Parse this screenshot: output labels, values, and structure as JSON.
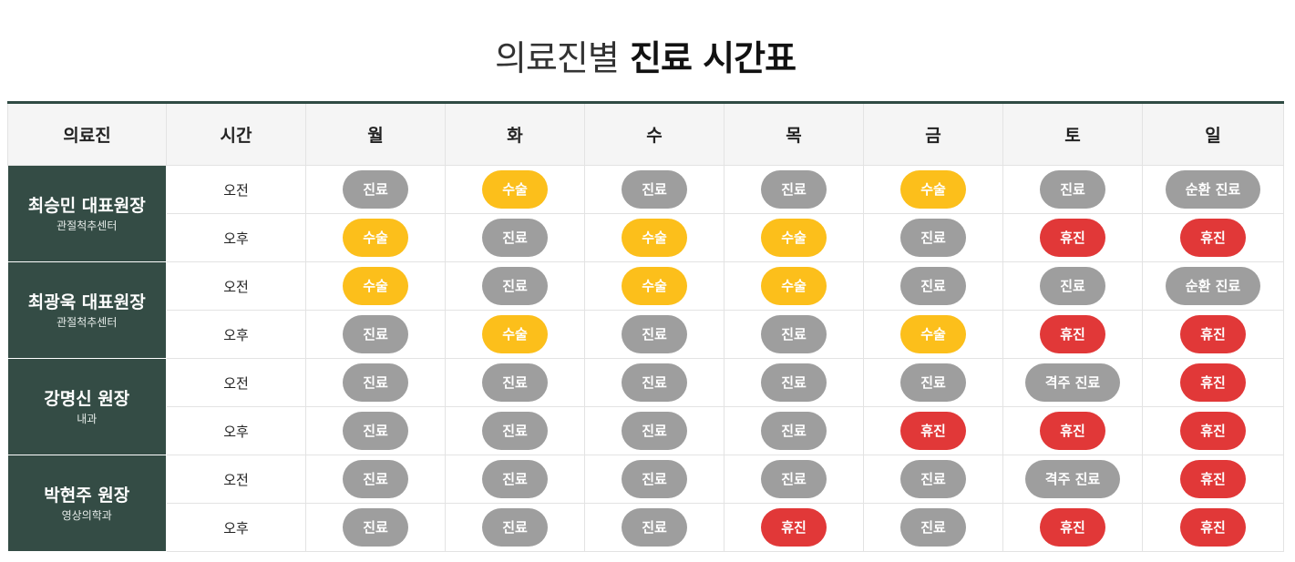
{
  "page": {
    "title_light": "의료진별",
    "title_bold": "진료 시간표"
  },
  "status_colors": {
    "진료": "#9e9e9e",
    "수술": "#fcbf1b",
    "휴진": "#e13838",
    "순환 진료": "#9e9e9e",
    "격주 진료": "#9e9e9e"
  },
  "table": {
    "headers": {
      "doctor": "의료진",
      "time": "시간",
      "days": [
        "월",
        "화",
        "수",
        "목",
        "금",
        "토",
        "일"
      ]
    },
    "doctors": [
      {
        "name": "최승민 대표원장",
        "dept": "관절척추센터",
        "rows": [
          {
            "time": "오전",
            "status": [
              "진료",
              "수술",
              "진료",
              "진료",
              "수술",
              "진료",
              "순환 진료"
            ]
          },
          {
            "time": "오후",
            "status": [
              "수술",
              "진료",
              "수술",
              "수술",
              "진료",
              "휴진",
              "휴진"
            ]
          }
        ]
      },
      {
        "name": "최광욱 대표원장",
        "dept": "관절척추센터",
        "rows": [
          {
            "time": "오전",
            "status": [
              "수술",
              "진료",
              "수술",
              "수술",
              "진료",
              "진료",
              "순환 진료"
            ]
          },
          {
            "time": "오후",
            "status": [
              "진료",
              "수술",
              "진료",
              "진료",
              "수술",
              "휴진",
              "휴진"
            ]
          }
        ]
      },
      {
        "name": "강명신 원장",
        "dept": "내과",
        "rows": [
          {
            "time": "오전",
            "status": [
              "진료",
              "진료",
              "진료",
              "진료",
              "진료",
              "격주 진료",
              "휴진"
            ]
          },
          {
            "time": "오후",
            "status": [
              "진료",
              "진료",
              "진료",
              "진료",
              "휴진",
              "휴진",
              "휴진"
            ]
          }
        ]
      },
      {
        "name": "박현주 원장",
        "dept": "영상의학과",
        "rows": [
          {
            "time": "오전",
            "status": [
              "진료",
              "진료",
              "진료",
              "진료",
              "진료",
              "격주 진료",
              "휴진"
            ]
          },
          {
            "time": "오후",
            "status": [
              "진료",
              "진료",
              "진료",
              "휴진",
              "진료",
              "휴진",
              "휴진"
            ]
          }
        ]
      }
    ]
  }
}
